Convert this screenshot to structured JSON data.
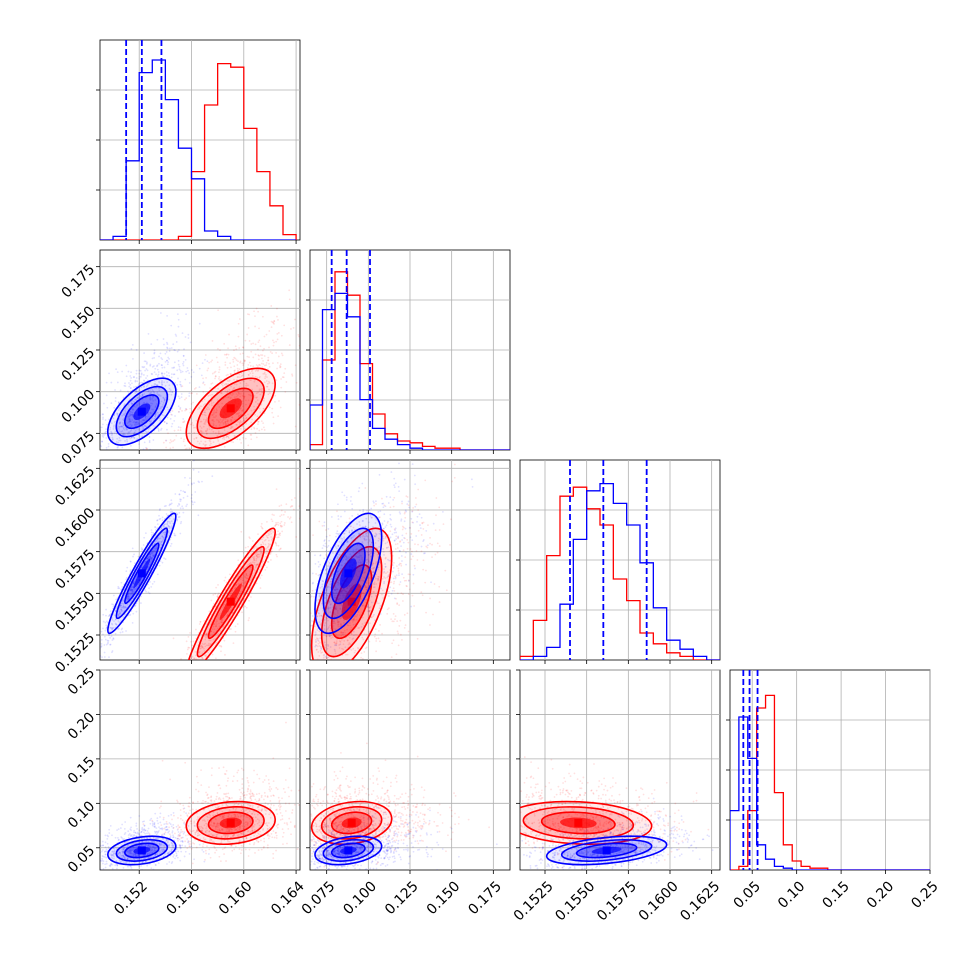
{
  "chart_data": {
    "type": "corner",
    "grid": true,
    "series": [
      {
        "name": "",
        "color": "#0000ff",
        "marginals": [
          {
            "type": "histogram",
            "bins": [
              0.149,
              0.15,
              0.151,
              0.152,
              0.153,
              0.154,
              0.155,
              0.156,
              0.157,
              0.158,
              0.159,
              0.16,
              0.161,
              0.162,
              0.163,
              0.164
            ],
            "counts": [
              0,
              0.02,
              0.44,
              0.93,
              1.0,
              0.78,
              0.51,
              0.34,
              0.05,
              0.02,
              0,
              0,
              0,
              0,
              0
            ]
          },
          {
            "type": "histogram",
            "bins": [
              0.065,
              0.0725,
              0.08,
              0.0875,
              0.095,
              0.1025,
              0.11,
              0.1175,
              0.125,
              0.1325,
              0.14,
              0.1475,
              0.155,
              0.1625,
              0.17,
              0.1775,
              0.185
            ],
            "counts": [
              0.25,
              0.78,
              0.87,
              0.74,
              0.28,
              0.12,
              0.06,
              0.03,
              0.01,
              0,
              0,
              0,
              0,
              0,
              0,
              0
            ]
          },
          {
            "type": "histogram",
            "bins": [
              0.151,
              0.1518,
              0.1526,
              0.1534,
              0.1542,
              0.155,
              0.1558,
              0.1566,
              0.1574,
              0.1582,
              0.159,
              0.1598,
              0.1606,
              0.1614,
              0.1622,
              0.163
            ],
            "counts": [
              0,
              0.02,
              0.07,
              0.31,
              0.67,
              0.94,
              0.98,
              0.87,
              0.75,
              0.54,
              0.29,
              0.11,
              0.06,
              0.02,
              0
            ]
          },
          {
            "type": "histogram",
            "bins": [
              0.025,
              0.035,
              0.045,
              0.055,
              0.065,
              0.075,
              0.085,
              0.095,
              0.105,
              0.115,
              0.125,
              0.135,
              0.145,
              0.155,
              0.165,
              0.175,
              0.185,
              0.195,
              0.205,
              0.215,
              0.225,
              0.235,
              0.245,
              0.25
            ],
            "counts": [
              0.33,
              0.85,
              0.62,
              0.14,
              0.06,
              0.02,
              0.01,
              0,
              0,
              0,
              0,
              0,
              0,
              0,
              0,
              0,
              0,
              0,
              0,
              0,
              0,
              0,
              0
            ]
          }
        ],
        "quantiles": [
          [
            0.151,
            0.1522,
            0.1537
          ],
          [
            0.078,
            0.087,
            0.101
          ],
          [
            0.154,
            0.156,
            0.1586
          ],
          [
            0.04,
            0.047,
            0.056
          ]
        ],
        "mean": [
          0.1522,
          0.088,
          0.1562,
          0.047
        ],
        "sigma": [
          0.0013,
          0.01,
          0.0018,
          0.008
        ],
        "correlation": {
          "1-0": 0.6,
          "2-0": 0.95,
          "2-1": 0.6,
          "3-0": 0.3,
          "3-1": 0.3,
          "3-2": 0.4
        }
      },
      {
        "name": "",
        "color": "#ff0000",
        "marginals": [
          {
            "type": "histogram",
            "bins": [
              0.149,
              0.15,
              0.151,
              0.152,
              0.153,
              0.154,
              0.155,
              0.156,
              0.157,
              0.158,
              0.159,
              0.16,
              0.161,
              0.162,
              0.163,
              0.164
            ],
            "counts": [
              0,
              0,
              0,
              0,
              0,
              0,
              0.02,
              0.38,
              0.75,
              0.98,
              0.96,
              0.62,
              0.38,
              0.19,
              0.03
            ]
          },
          {
            "type": "histogram",
            "bins": [
              0.065,
              0.0725,
              0.08,
              0.0875,
              0.095,
              0.1025,
              0.11,
              0.1175,
              0.125,
              0.1325,
              0.14,
              0.1475,
              0.155,
              0.1625,
              0.17,
              0.1775,
              0.185
            ],
            "counts": [
              0.03,
              0.5,
              0.99,
              0.86,
              0.48,
              0.2,
              0.09,
              0.05,
              0.04,
              0.02,
              0.01,
              0.01,
              0,
              0,
              0,
              0
            ]
          },
          {
            "type": "histogram",
            "bins": [
              0.151,
              0.1518,
              0.1526,
              0.1534,
              0.1542,
              0.155,
              0.1558,
              0.1566,
              0.1574,
              0.1582,
              0.159,
              0.1598,
              0.1606,
              0.1614,
              0.1622,
              0.163
            ],
            "counts": [
              0.02,
              0.22,
              0.58,
              0.91,
              0.96,
              0.84,
              0.75,
              0.45,
              0.33,
              0.15,
              0.09,
              0.04,
              0.02,
              0,
              0
            ]
          },
          {
            "type": "histogram",
            "bins": [
              0.025,
              0.035,
              0.045,
              0.055,
              0.065,
              0.075,
              0.085,
              0.095,
              0.105,
              0.115,
              0.125,
              0.135,
              0.145,
              0.155,
              0.165,
              0.175,
              0.185,
              0.195,
              0.205,
              0.215,
              0.225,
              0.235,
              0.245,
              0.25
            ],
            "counts": [
              0,
              0.02,
              0.33,
              0.9,
              0.97,
              0.43,
              0.14,
              0.05,
              0.02,
              0.01,
              0.01,
              0,
              0,
              0,
              0,
              0,
              0,
              0,
              0,
              0,
              0,
              0,
              0
            ]
          }
        ],
        "mean": [
          0.159,
          0.09,
          0.1545,
          0.078
        ],
        "sigma": [
          0.0017,
          0.012,
          0.0022,
          0.012
        ],
        "correlation": {
          "1-0": 0.6,
          "2-0": 0.95,
          "2-1": 0.6,
          "3-0": 0.15,
          "3-1": 0.2,
          "3-2": -0.15
        }
      }
    ],
    "axes": [
      {
        "range": [
          0.149,
          0.1643
        ],
        "ticks": [
          0.152,
          0.156,
          0.16,
          0.164
        ],
        "tick_labels": [
          "0.152",
          "0.156",
          "0.160",
          "0.164"
        ]
      },
      {
        "range": [
          0.065,
          0.185
        ],
        "ticks": [
          0.075,
          0.1,
          0.125,
          0.15,
          0.175
        ],
        "tick_labels": [
          "0.075",
          "0.100",
          "0.125",
          "0.150",
          "0.175"
        ]
      },
      {
        "range": [
          0.151,
          0.163
        ],
        "ticks": [
          0.1525,
          0.155,
          0.1575,
          0.16,
          0.1625
        ],
        "tick_labels": [
          "0.1525",
          "0.1550",
          "0.1575",
          "0.1600",
          "0.1625"
        ]
      },
      {
        "range": [
          0.025,
          0.25
        ],
        "ticks": [
          0.05,
          0.1,
          0.15,
          0.2,
          0.25
        ],
        "tick_labels": [
          "0.05",
          "0.10",
          "0.15",
          "0.20",
          "0.25"
        ]
      }
    ]
  }
}
